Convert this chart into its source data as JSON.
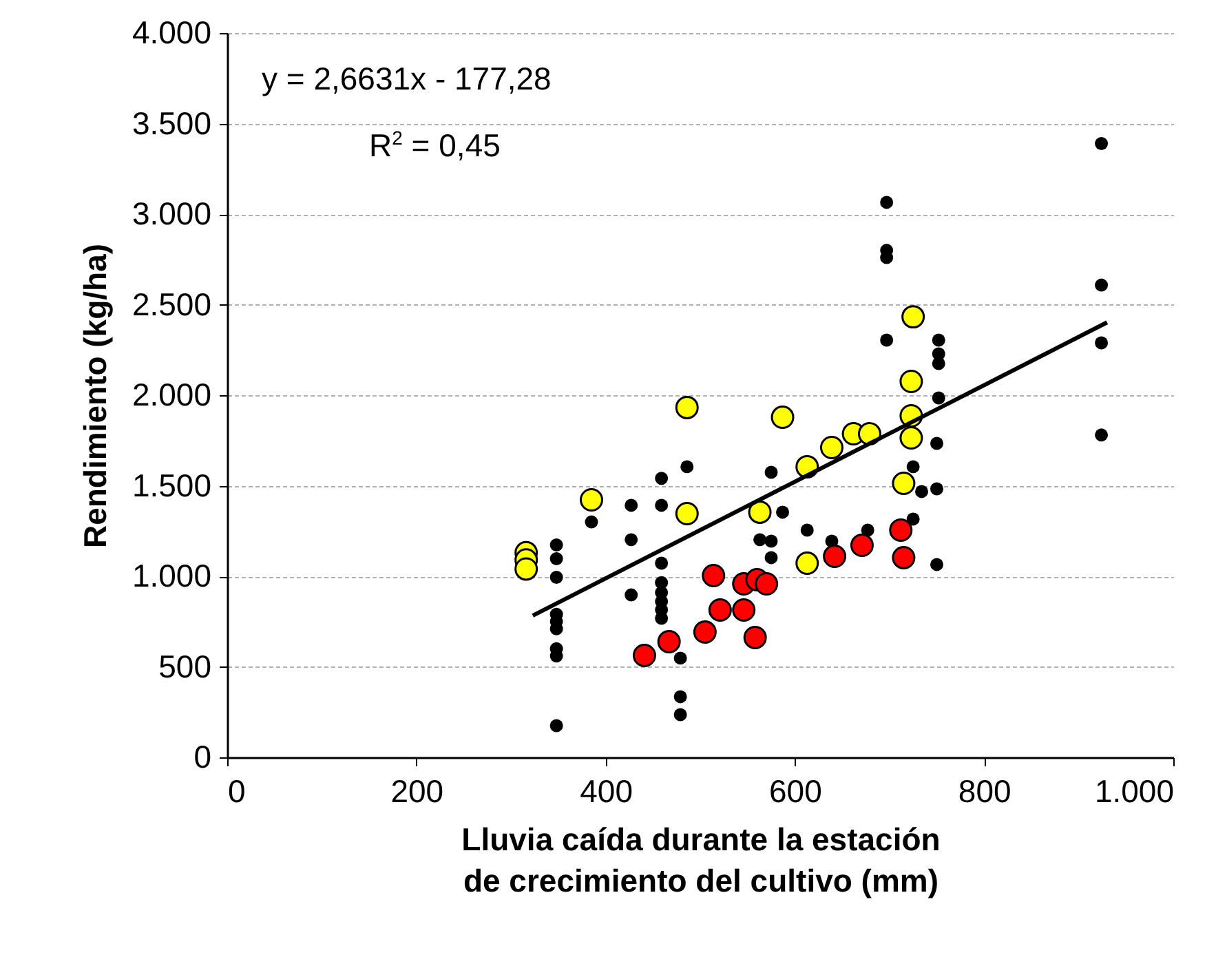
{
  "chart_data": {
    "type": "scatter",
    "xlabel": "Lluvia caída durante la estación de crecimiento del cultivo (mm)",
    "ylabel": "Rendimiento (kg/ha)",
    "xlim": [
      0,
      1000
    ],
    "xticks": [
      0,
      200,
      400,
      600,
      800,
      {
        "value": 1000,
        "label": "1.000"
      }
    ],
    "ylim": [
      0,
      4000
    ],
    "yticks": [
      0,
      500,
      {
        "value": 1000,
        "label": "1.000"
      },
      {
        "value": 1500,
        "label": "1.500"
      },
      {
        "value": 2000,
        "label": "2.000"
      },
      {
        "value": 2500,
        "label": "2.500"
      },
      {
        "value": 3000,
        "label": "3.000"
      },
      {
        "value": 3500,
        "label": "3.500"
      },
      {
        "value": 4000,
        "label": "4.000"
      }
    ],
    "grid": "y",
    "annotations": [
      "y = 2,6631x - 177,28",
      "R$^{2}$ = 0,45"
    ],
    "series": [
      {
        "color": "#000000",
        "marker": "circle",
        "x": [
          348,
          348,
          348,
          348,
          348,
          348,
          348,
          348,
          348,
          385,
          427,
          427,
          427,
          459,
          459,
          459,
          459,
          459,
          459,
          459,
          459,
          479,
          479,
          479,
          486,
          563,
          575,
          575,
          575,
          587,
          613,
          639,
          677,
          697,
          697,
          697,
          697,
          725,
          734,
          725,
          750,
          750,
          750,
          752,
          752,
          752,
          752,
          924,
          924,
          924,
          924
        ],
        "values": [
          1173,
          1097,
          994,
          790,
          750,
          710,
          600,
          560,
          175,
          1300,
          1392,
          1202,
          897,
          1541,
          1392,
          1072,
          965,
          910,
          860,
          815,
          768,
          548,
          335,
          236,
          1605,
          1202,
          1194,
          1103,
          1574,
          1354,
          1255,
          1194,
          1255,
          3065,
          2800,
          2760,
          2304,
          1605,
          1468,
          1316,
          1734,
          1483,
          1065,
          2304,
          2228,
          2175,
          1985,
          3390,
          2608,
          2289,
          1780
        ]
      },
      {
        "color": "#ffff00",
        "marker": "circle",
        "x": [
          316,
          316,
          316,
          385,
          486,
          486,
          563,
          587,
          613,
          613,
          639,
          662,
          679,
          715,
          723,
          723,
          723,
          725
        ],
        "values": [
          1130,
          1090,
          1040,
          1422,
          1932,
          1346,
          1354,
          1878,
          1072,
          1605,
          1711,
          1787,
          1787,
          1513,
          2076,
          1886,
          1764,
          2433
        ]
      },
      {
        "color": "#ff0000",
        "marker": "circle",
        "x": [
          441,
          467,
          505,
          514,
          521,
          546,
          546,
          558,
          560,
          570,
          642,
          671,
          712,
          715
        ],
        "values": [
          563,
          639,
          692,
          1004,
          814,
          958,
          814,
          662,
          981,
          958,
          1110,
          1171,
          1255,
          1103
        ]
      },
      {
        "type": "line",
        "color": "#000000",
        "x": [
          323,
          930
        ],
        "values": [
          783,
          2402
        ]
      }
    ]
  }
}
